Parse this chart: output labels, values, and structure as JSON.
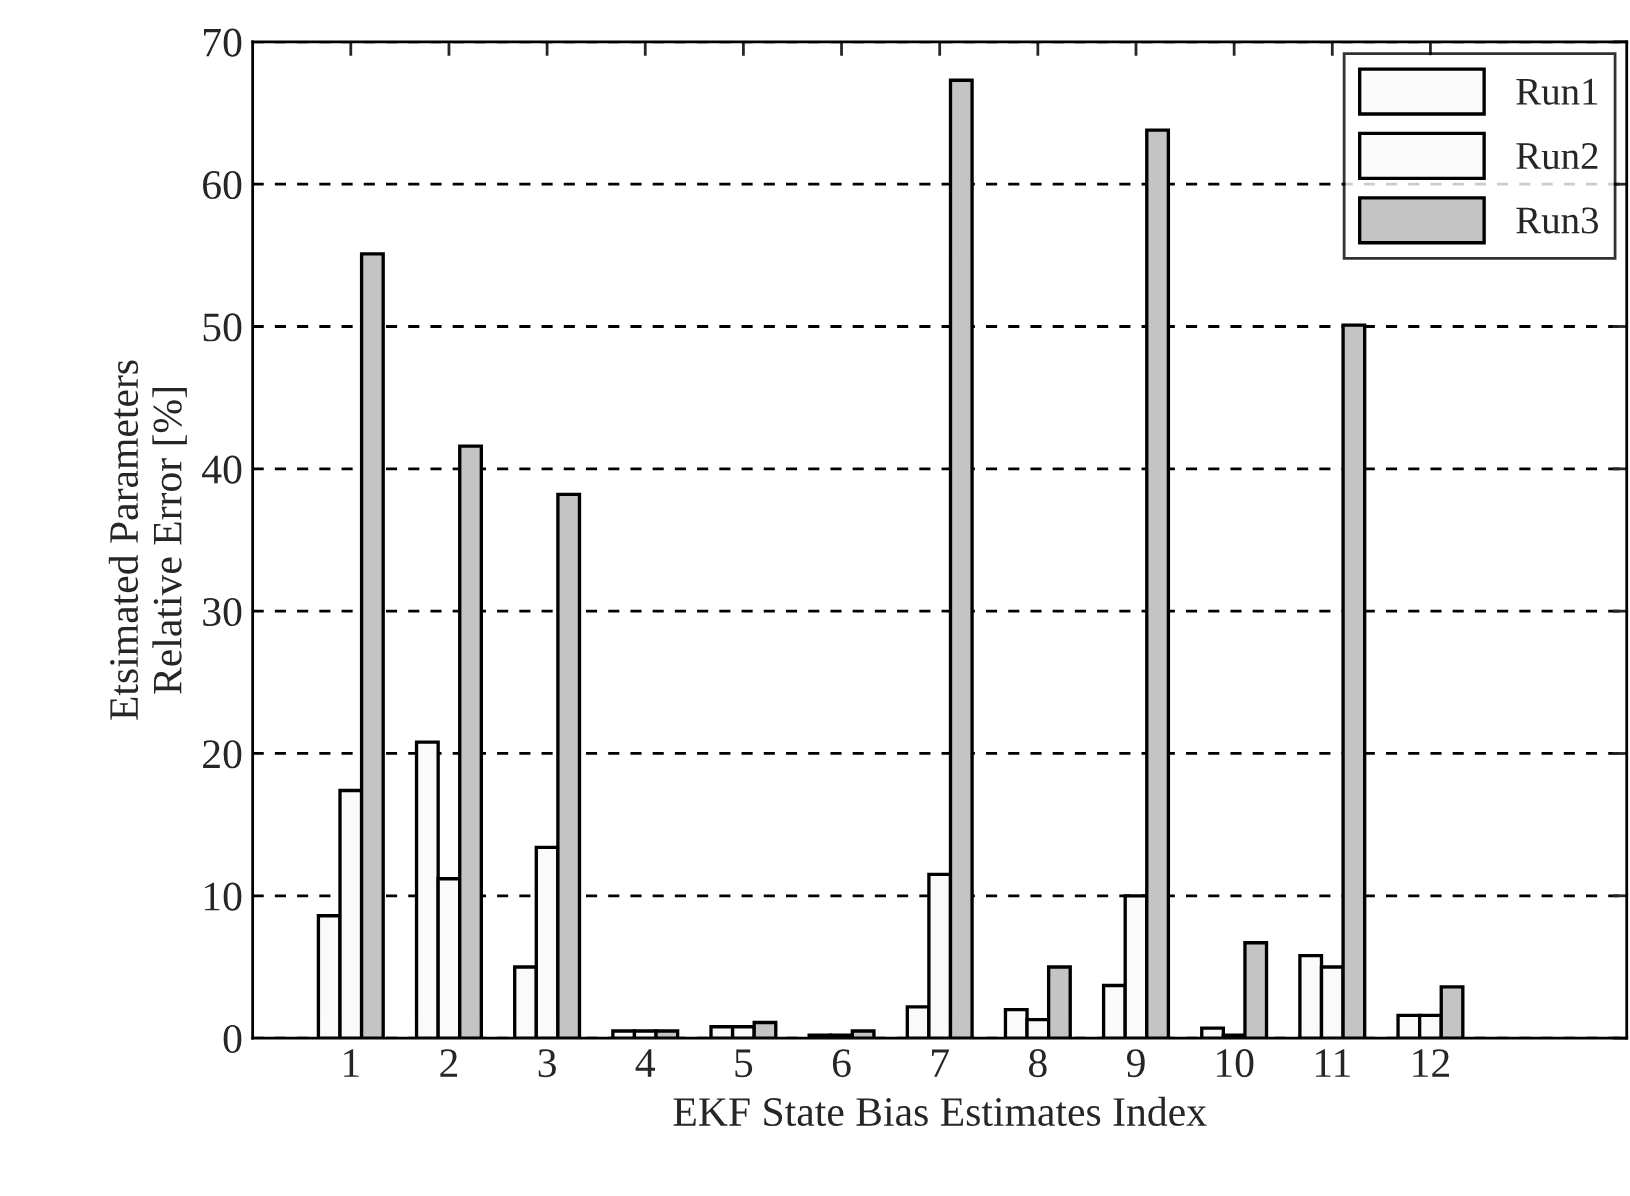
{
  "chart_data": {
    "type": "bar",
    "xlabel": "EKF State Bias Estimates Index",
    "ylabel": "Etsimated Parameters\nRelative Error [%]",
    "x": [
      1,
      2,
      3,
      4,
      5,
      6,
      7,
      8,
      9,
      10,
      11,
      12
    ],
    "xlim": [
      0,
      14
    ],
    "xticks": [
      1,
      2,
      3,
      4,
      5,
      6,
      7,
      8,
      9,
      10,
      11,
      12
    ],
    "ylim": [
      0,
      70
    ],
    "yticks": [
      0,
      10,
      20,
      30,
      40,
      50,
      60,
      70
    ],
    "grid": "y",
    "legend": "top right",
    "series": [
      {
        "name": "Run1",
        "color": "#fafafa",
        "values": [
          8.6,
          20.8,
          5.0,
          0.5,
          0.8,
          0.2,
          2.2,
          2.0,
          3.7,
          0.7,
          5.8,
          1.6
        ]
      },
      {
        "name": "Run2",
        "color": "#fafafa",
        "values": [
          17.4,
          11.2,
          13.4,
          0.5,
          0.8,
          0.2,
          11.5,
          1.3,
          10.0,
          0.2,
          5.0,
          1.6
        ]
      },
      {
        "name": "Run3",
        "color": "#c4c4c4",
        "values": [
          55.1,
          41.6,
          38.2,
          0.5,
          1.1,
          0.5,
          67.3,
          5.0,
          63.8,
          6.7,
          50.1,
          3.6
        ]
      }
    ]
  }
}
